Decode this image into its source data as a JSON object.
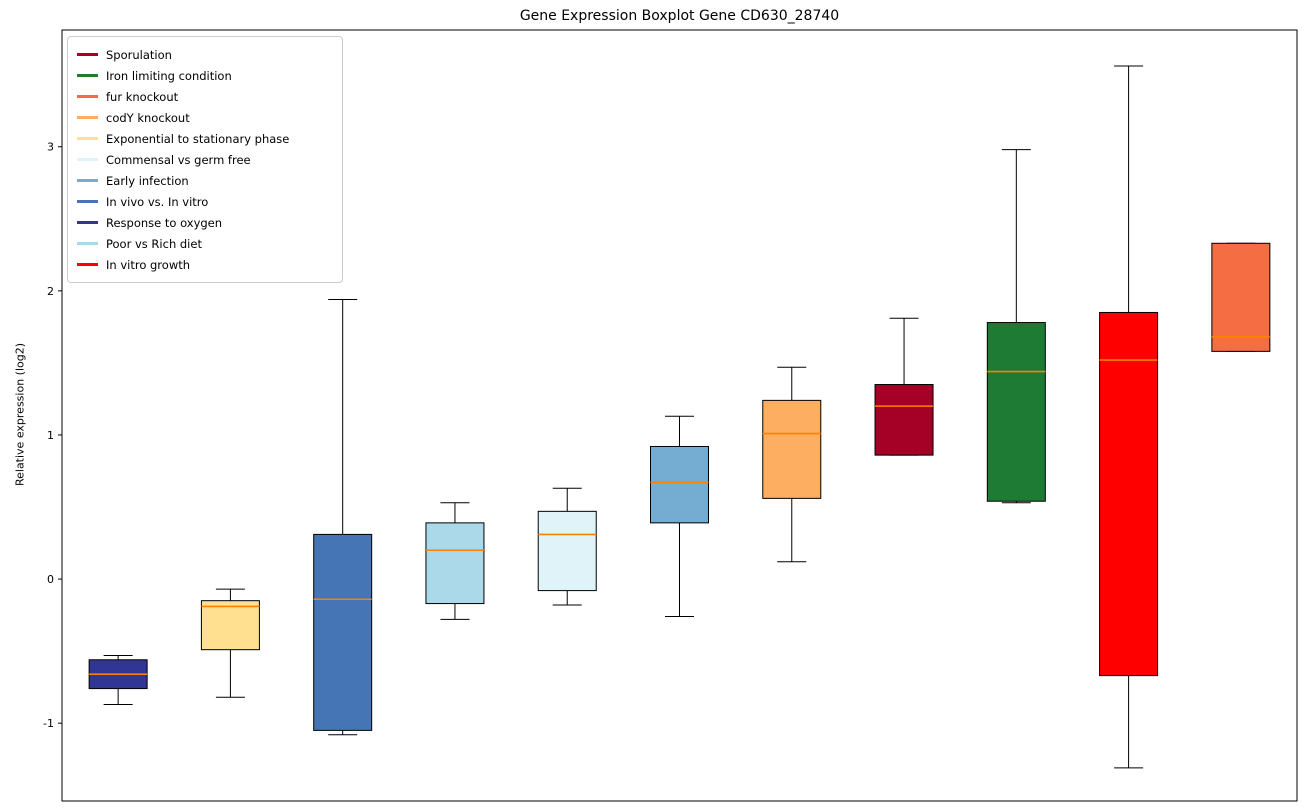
{
  "title": "Gene Expression Boxplot Gene CD630_28740",
  "ylabel": "Relative expression (log2)",
  "legend": {
    "items": [
      {
        "label": "Sporulation",
        "color": "#A50026"
      },
      {
        "label": "Iron limiting condition",
        "color": "#1E7B34"
      },
      {
        "label": "fur knockout",
        "color": "#F46D43"
      },
      {
        "label": "codY knockout",
        "color": "#FDAE61"
      },
      {
        "label": "Exponential to stationary phase",
        "color": "#FEE090"
      },
      {
        "label": "Commensal vs germ free",
        "color": "#E0F3F8"
      },
      {
        "label": "Early infection",
        "color": "#74ADD1"
      },
      {
        "label": "In vivo vs. In vitro",
        "color": "#4575B4"
      },
      {
        "label": "Response to oxygen",
        "color": "#313695"
      },
      {
        "label": "Poor vs Rich diet",
        "color": "#ABD9E9"
      },
      {
        "label": "In vitro growth",
        "color": "#FF0000"
      }
    ]
  },
  "chart_data": {
    "type": "boxplot",
    "title": "Gene Expression Boxplot Gene CD630_28740",
    "xlabel": "",
    "ylabel": "Relative expression (log2)",
    "yticks": [
      -1,
      0,
      1,
      2,
      3
    ],
    "ylim": [
      -1.54,
      3.81
    ],
    "grid": false,
    "legend_position": "upper left",
    "median_color": "#FF8000",
    "box_edge_color": "#000000",
    "series": [
      {
        "name": "Response to oxygen",
        "color": "#313695",
        "whislo": -0.87,
        "q1": -0.76,
        "med": -0.66,
        "q3": -0.56,
        "whishi": -0.53
      },
      {
        "name": "Exponential to stationary phase",
        "color": "#FEE090",
        "whislo": -0.82,
        "q1": -0.49,
        "med": -0.19,
        "q3": -0.15,
        "whishi": -0.07
      },
      {
        "name": "In vivo vs. In vitro",
        "color": "#4575B4",
        "whislo": -1.08,
        "q1": -1.05,
        "med": -0.14,
        "q3": 0.31,
        "whishi": 1.94
      },
      {
        "name": "Poor vs Rich diet",
        "color": "#ABD9E9",
        "whislo": -0.28,
        "q1": -0.17,
        "med": 0.2,
        "q3": 0.39,
        "whishi": 0.53
      },
      {
        "name": "Commensal vs germ free",
        "color": "#E0F3F8",
        "whislo": -0.18,
        "q1": -0.08,
        "med": 0.31,
        "q3": 0.47,
        "whishi": 0.63
      },
      {
        "name": "Early infection",
        "color": "#74ADD1",
        "whislo": -0.26,
        "q1": 0.39,
        "med": 0.67,
        "q3": 0.92,
        "whishi": 1.13
      },
      {
        "name": "codY knockout",
        "color": "#FDAE61",
        "whislo": 0.12,
        "q1": 0.56,
        "med": 1.01,
        "q3": 1.24,
        "whishi": 1.47
      },
      {
        "name": "Sporulation",
        "color": "#A50026",
        "whislo": 0.86,
        "q1": 0.86,
        "med": 1.2,
        "q3": 1.35,
        "whishi": 1.81
      },
      {
        "name": "Iron limiting condition",
        "color": "#1E7B34",
        "whislo": 0.53,
        "q1": 0.54,
        "med": 1.44,
        "q3": 1.78,
        "whishi": 2.98
      },
      {
        "name": "In vitro growth",
        "color": "#FF0000",
        "whislo": -1.31,
        "q1": -0.67,
        "med": 1.52,
        "q3": 1.85,
        "whishi": 3.56
      },
      {
        "name": "fur knockout",
        "color": "#F46D43",
        "whislo": 1.58,
        "q1": 1.58,
        "med": 1.68,
        "q3": 2.33,
        "whishi": 2.33
      }
    ]
  }
}
